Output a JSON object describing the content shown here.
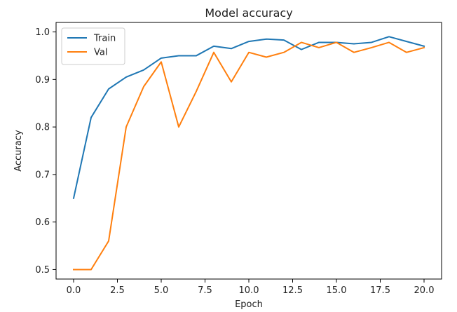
{
  "chart_data": {
    "type": "line",
    "title": "Model accuracy",
    "xlabel": "Epoch",
    "ylabel": "Accuracy",
    "xlim": [
      -1,
      21
    ],
    "ylim": [
      0.48,
      1.02
    ],
    "x": [
      0,
      1,
      2,
      3,
      4,
      5,
      6,
      7,
      8,
      9,
      10,
      11,
      12,
      13,
      14,
      15,
      16,
      17,
      18,
      19,
      20
    ],
    "x_ticks": [
      0.0,
      2.5,
      5.0,
      7.5,
      10.0,
      12.5,
      15.0,
      17.5,
      20.0
    ],
    "x_tick_labels": [
      "0.0",
      "2.5",
      "5.0",
      "7.5",
      "10.0",
      "12.5",
      "15.0",
      "17.5",
      "20.0"
    ],
    "y_ticks": [
      0.5,
      0.6,
      0.7,
      0.8,
      0.9,
      1.0
    ],
    "y_tick_labels": [
      "0.5",
      "0.6",
      "0.7",
      "0.8",
      "0.9",
      "1.0"
    ],
    "grid": false,
    "legend_position": "top-left",
    "series": [
      {
        "name": "Train",
        "color": "#1f77b4",
        "values": [
          0.65,
          0.82,
          0.88,
          0.905,
          0.92,
          0.945,
          0.95,
          0.95,
          0.97,
          0.965,
          0.98,
          0.985,
          0.983,
          0.963,
          0.978,
          0.978,
          0.975,
          0.978,
          0.99,
          0.98,
          0.97
        ]
      },
      {
        "name": "Val",
        "color": "#ff7f0e",
        "values": [
          0.5,
          0.5,
          0.56,
          0.8,
          0.885,
          0.937,
          0.8,
          0.875,
          0.957,
          0.895,
          0.957,
          0.947,
          0.957,
          0.978,
          0.967,
          0.978,
          0.957,
          0.967,
          0.978,
          0.957,
          0.967
        ]
      }
    ]
  }
}
